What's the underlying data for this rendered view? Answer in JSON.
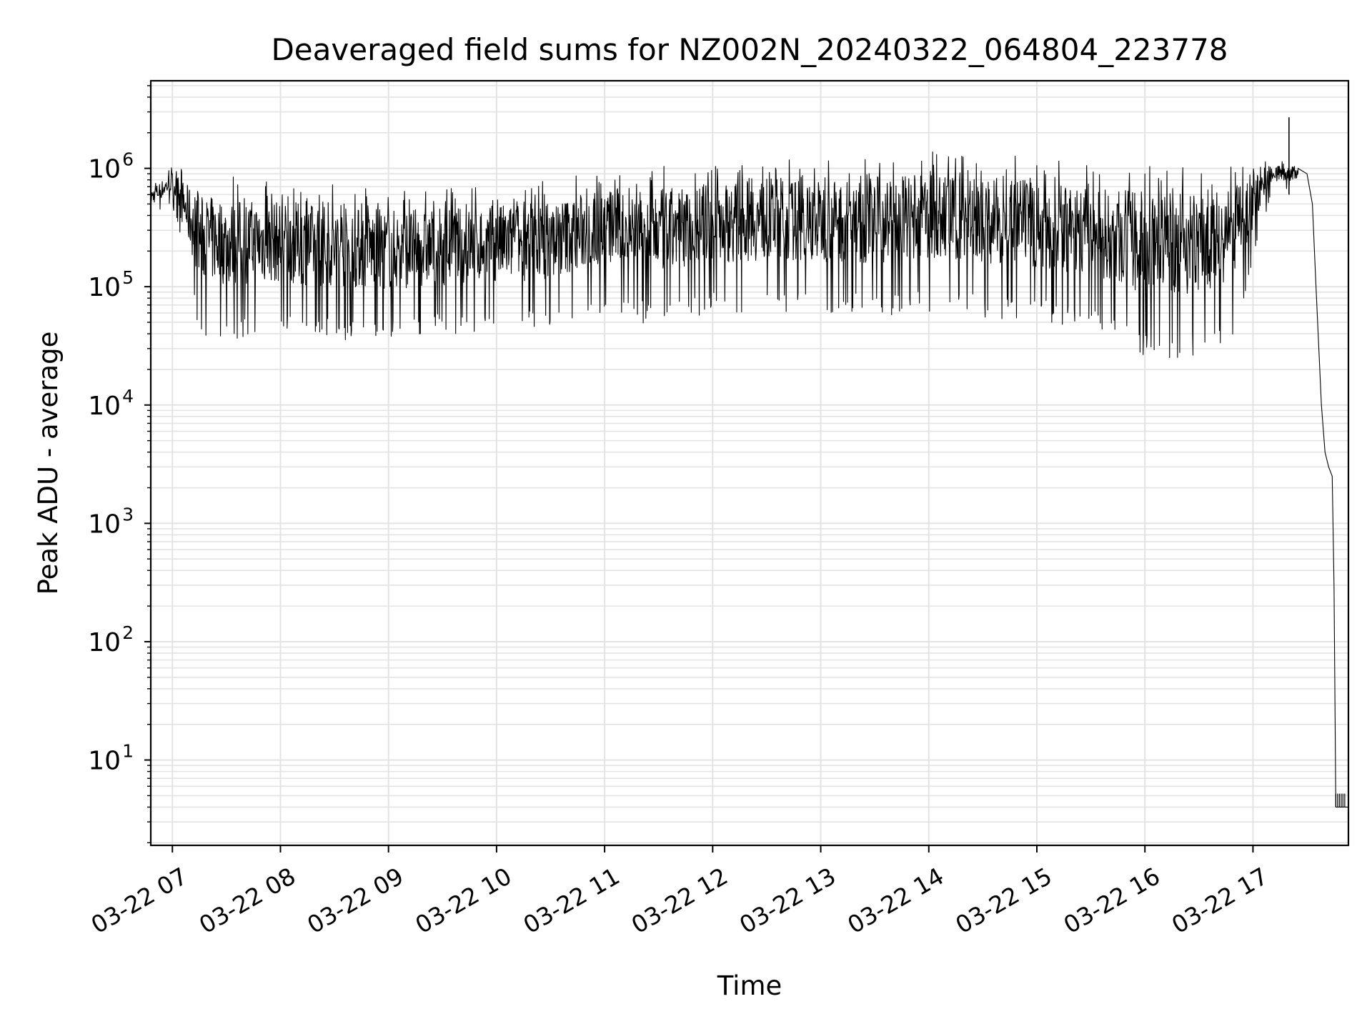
{
  "chart_data": {
    "type": "line",
    "title": "Deaveraged field sums for NZ002N_20240322_064804_223778",
    "xlabel": "Time",
    "ylabel": "Peak ADU - average",
    "yscale": "log",
    "grid": true,
    "grid_minor": true,
    "legend": "none",
    "line_color": "#000000",
    "xlim": [
      "2024-03-22 06:48",
      "2024-03-22 17:53"
    ],
    "ylim": [
      1.9,
      5500000
    ],
    "x_ticks": [
      {
        "value": "2024-03-22 07:00",
        "label": "03-22 07"
      },
      {
        "value": "2024-03-22 08:00",
        "label": "03-22 08"
      },
      {
        "value": "2024-03-22 09:00",
        "label": "03-22 09"
      },
      {
        "value": "2024-03-22 10:00",
        "label": "03-22 10"
      },
      {
        "value": "2024-03-22 11:00",
        "label": "03-22 11"
      },
      {
        "value": "2024-03-22 12:00",
        "label": "03-22 12"
      },
      {
        "value": "2024-03-22 13:00",
        "label": "03-22 13"
      },
      {
        "value": "2024-03-22 14:00",
        "label": "03-22 14"
      },
      {
        "value": "2024-03-22 15:00",
        "label": "03-22 15"
      },
      {
        "value": "2024-03-22 16:00",
        "label": "03-22 16"
      },
      {
        "value": "2024-03-22 17:00",
        "label": "03-22 17"
      }
    ],
    "y_ticks": [
      {
        "value": 10,
        "base": "10",
        "exp": "1"
      },
      {
        "value": 100,
        "base": "10",
        "exp": "2"
      },
      {
        "value": 1000,
        "base": "10",
        "exp": "3"
      },
      {
        "value": 10000,
        "base": "10",
        "exp": "4"
      },
      {
        "value": 100000,
        "base": "10",
        "exp": "5"
      },
      {
        "value": 1000000,
        "base": "10",
        "exp": "6"
      }
    ],
    "series": [
      {
        "envelope": {
          "x": [
            "2024-03-22 06:48",
            "2024-03-22 07:00",
            "2024-03-22 07:15",
            "2024-03-22 07:30",
            "2024-03-22 08:00",
            "2024-03-22 08:30",
            "2024-03-22 09:00",
            "2024-03-22 09:30",
            "2024-03-22 10:00",
            "2024-03-22 10:30",
            "2024-03-22 11:00",
            "2024-03-22 11:30",
            "2024-03-22 12:00",
            "2024-03-22 12:30",
            "2024-03-22 13:00",
            "2024-03-22 13:30",
            "2024-03-22 14:00",
            "2024-03-22 14:30",
            "2024-03-22 15:00",
            "2024-03-22 15:30",
            "2024-03-22 16:00",
            "2024-03-22 16:30",
            "2024-03-22 16:50",
            "2024-03-22 17:10",
            "2024-03-22 17:25"
          ],
          "upper": [
            700000,
            1000000,
            800000,
            750000,
            700000,
            650000,
            600000,
            600000,
            650000,
            700000,
            900000,
            900000,
            1000000,
            1100000,
            1050000,
            1150000,
            1200000,
            1150000,
            1050000,
            950000,
            900000,
            900000,
            900000,
            1200000,
            1000000
          ],
          "lower": [
            400000,
            500000,
            40000,
            35000,
            40000,
            35000,
            35000,
            40000,
            40000,
            45000,
            60000,
            45000,
            60000,
            60000,
            60000,
            55000,
            60000,
            55000,
            50000,
            40000,
            25000,
            25000,
            40000,
            600000,
            700000
          ]
        },
        "peak": {
          "x": "2024-03-22 17:20",
          "y": 2700000
        },
        "falloff": {
          "x": [
            "2024-03-22 17:25",
            "2024-03-22 17:30",
            "2024-03-22 17:33",
            "2024-03-22 17:35",
            "2024-03-22 17:38",
            "2024-03-22 17:40",
            "2024-03-22 17:42",
            "2024-03-22 17:44",
            "2024-03-22 17:45",
            "2024-03-22 17:46",
            "2024-03-22 17:48",
            "2024-03-22 17:50",
            "2024-03-22 17:53"
          ],
          "y": [
            1000000,
            900000,
            500000,
            100000,
            10000,
            4000,
            3000,
            2500,
            300,
            4,
            4,
            4,
            4
          ]
        }
      }
    ]
  }
}
